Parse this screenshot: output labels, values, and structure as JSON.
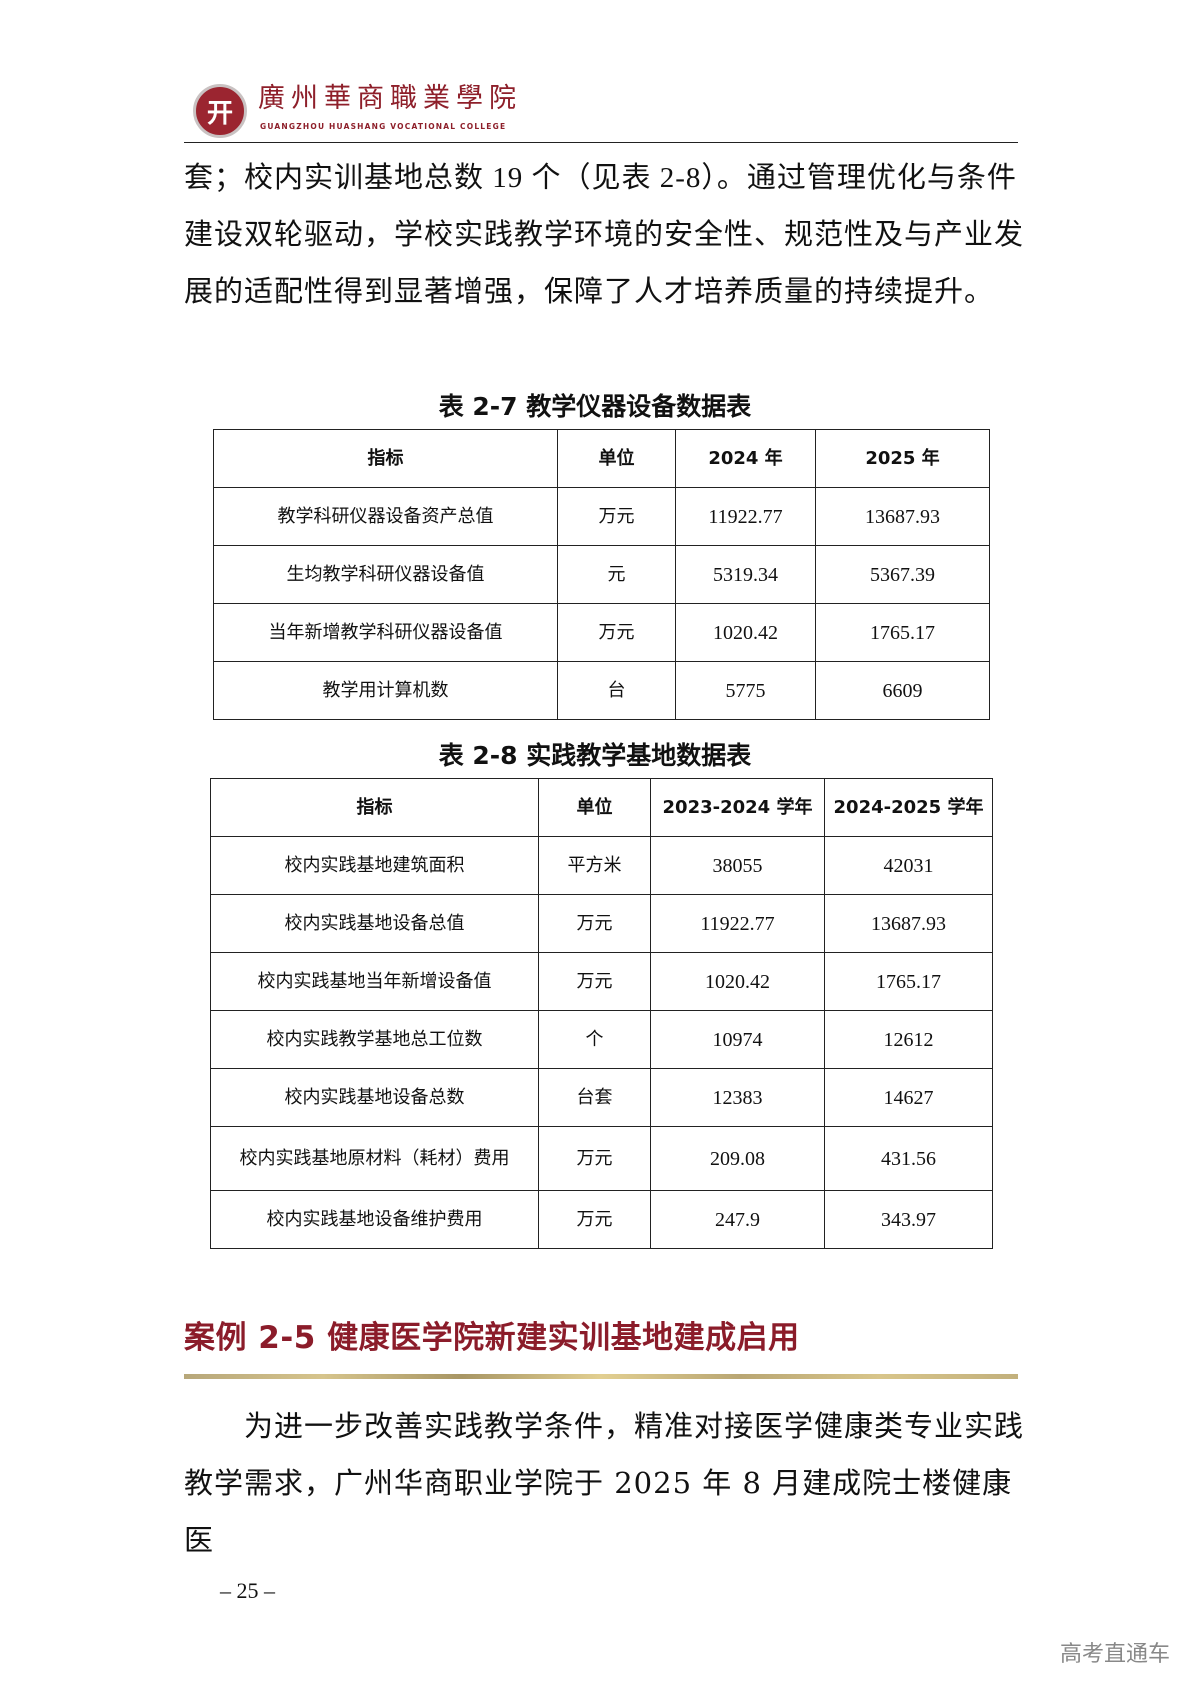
{
  "header": {
    "logo_cn": "廣州華商職業學院",
    "logo_en": "GUANGZHOU HUASHANG VOCATIONAL COLLEGE"
  },
  "intro_paragraph": "套；校内实训基地总数 19 个（见表 2-8）。通过管理优化与条件建设双轮驱动，学校实践教学环境的安全性、规范性及与产业发展的适配性得到显著增强，保障了人才培养质量的持续提升。",
  "table1": {
    "title": "表 2-7  教学仪器设备数据表",
    "headers": [
      "指标",
      "单位",
      "2024 年",
      "2025 年"
    ],
    "rows": [
      [
        "教学科研仪器设备资产总值",
        "万元",
        "11922.77",
        "13687.93"
      ],
      [
        "生均教学科研仪器设备值",
        "元",
        "5319.34",
        "5367.39"
      ],
      [
        "当年新增教学科研仪器设备值",
        "万元",
        "1020.42",
        "1765.17"
      ],
      [
        "教学用计算机数",
        "台",
        "5775",
        "6609"
      ]
    ]
  },
  "table2": {
    "title": "表 2-8  实践教学基地数据表",
    "headers": [
      "指标",
      "单位",
      "2023-2024 学年",
      "2024-2025 学年"
    ],
    "rows": [
      [
        "校内实践基地建筑面积",
        "平方米",
        "38055",
        "42031"
      ],
      [
        "校内实践基地设备总值",
        "万元",
        "11922.77",
        "13687.93"
      ],
      [
        "校内实践基地当年新增设备值",
        "万元",
        "1020.42",
        "1765.17"
      ],
      [
        "校内实践教学基地总工位数",
        "个",
        "10974",
        "12612"
      ],
      [
        "校内实践基地设备总数",
        "台套",
        "12383",
        "14627"
      ],
      [
        "校内实践基地原材料（耗材）费用",
        "万元",
        "209.08",
        "431.56"
      ],
      [
        "校内实践基地设备维护费用",
        "万元",
        "247.9",
        "343.97"
      ]
    ]
  },
  "case_heading": "案例 2-5  健康医学院新建实训基地建成启用",
  "case_paragraph": "　　为进一步改善实践教学条件，精准对接医学健康类专业实践教学需求，广州华商职业学院于 2025 年 8 月建成院士楼健康医",
  "page_number": "– 25 –",
  "watermark": "高考直通车",
  "colors": {
    "brand_red": "#8b1c2a",
    "gold_rule": "#d6c48c"
  }
}
